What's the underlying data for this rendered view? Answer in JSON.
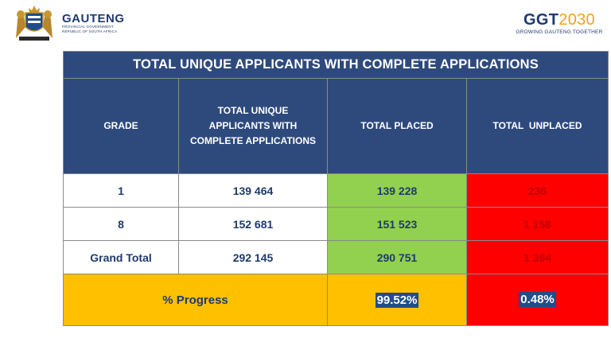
{
  "branding": {
    "left_name": "GAUTENG",
    "left_line1": "PROVINCIAL GOVERNMENT",
    "left_line2": "REPUBLIC OF SOUTH AFRICA",
    "right_mark_bold": "GGT",
    "right_mark_year": "2030",
    "right_tagline": "GROWING GAUTENG TOGETHER"
  },
  "table": {
    "title": "TOTAL UNIQUE APPLICANTS WITH COMPLETE APPLICATIONS",
    "headers": {
      "grade": "GRADE",
      "total_line1": "TOTAL UNIQUE",
      "total_line2": "APPLICANTS WITH",
      "total_line3": "COMPLETE APPLICATIONS",
      "placed": "TOTAL PLACED",
      "unplaced": "TOTAL  UNPLACED"
    },
    "rows": [
      {
        "grade": "1",
        "total": "139 464",
        "placed": "139 228",
        "unplaced": "236"
      },
      {
        "grade": "8",
        "total": "152 681",
        "placed": "151 523",
        "unplaced": "1 158"
      },
      {
        "grade": "Grand Total",
        "total": "292 145",
        "placed": "290 751",
        "unplaced": "1 394"
      }
    ],
    "progress": {
      "label": "% Progress",
      "placed": "99.52%",
      "unplaced": "0.48%"
    }
  },
  "colors": {
    "header_blue": "#2e4a7d",
    "placed_green": "#92d050",
    "unplaced_red": "#ff0000",
    "progress_yellow": "#ffc000"
  }
}
